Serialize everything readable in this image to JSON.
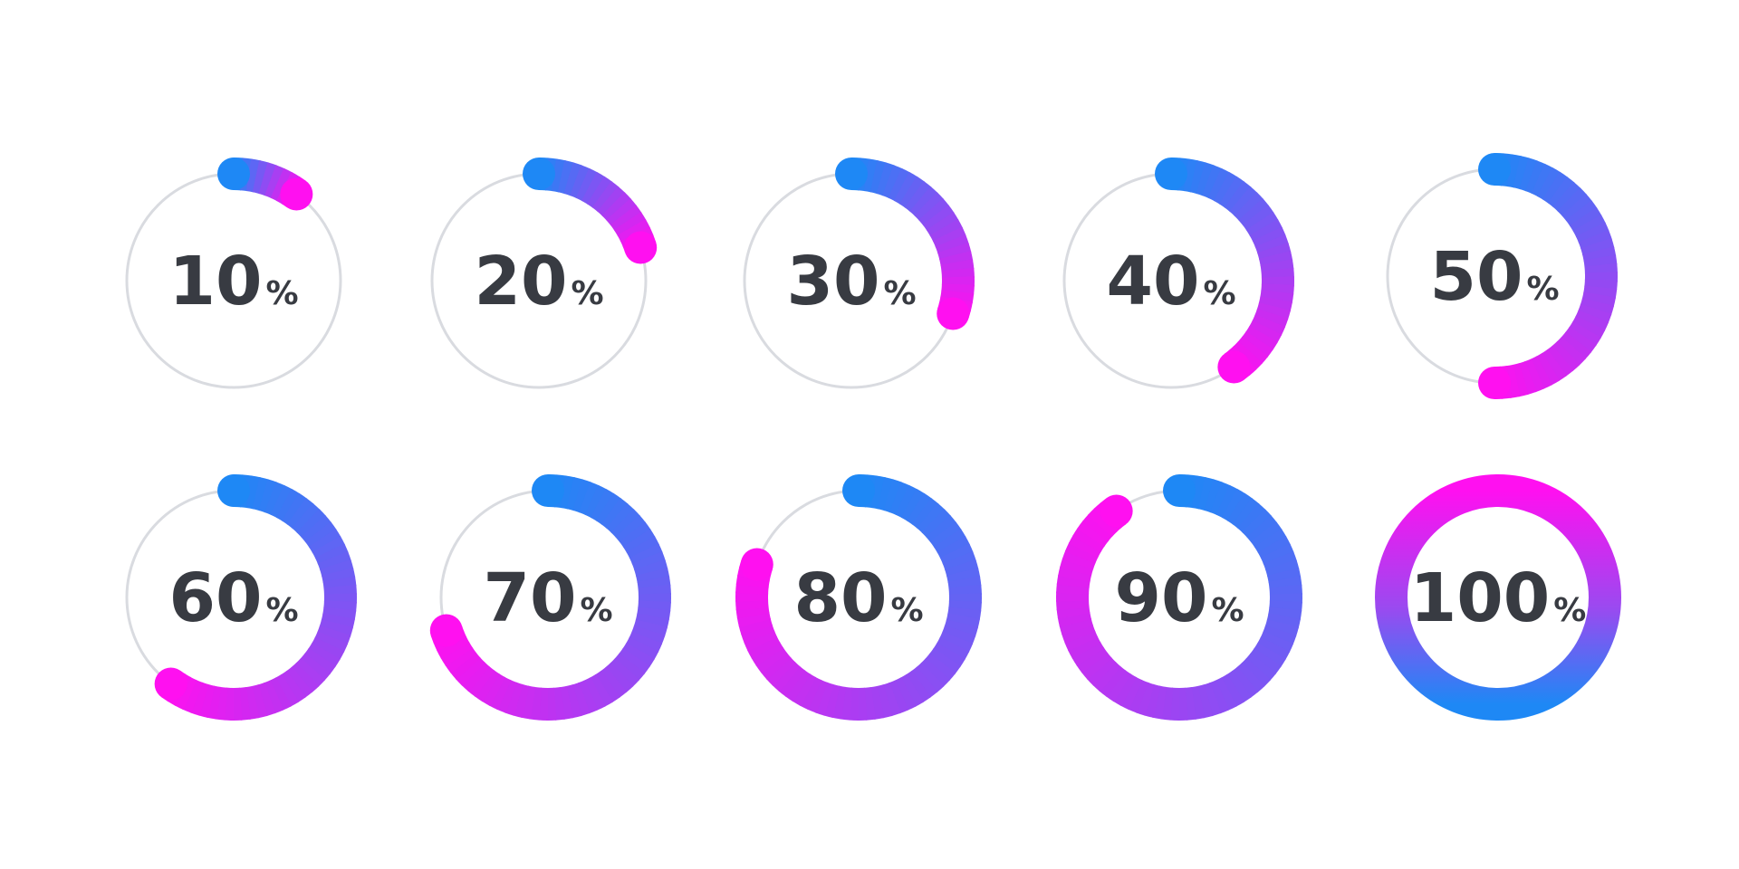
{
  "colors": {
    "background": "#ffffff",
    "track": "#d9dbe0",
    "text": "#383b42",
    "gradient_start": "#1e88f5",
    "gradient_end": "#ff10f0"
  },
  "indicators": [
    {
      "value": 10,
      "label_number": "10",
      "label_sign": "%"
    },
    {
      "value": 20,
      "label_number": "20",
      "label_sign": "%"
    },
    {
      "value": 30,
      "label_number": "30",
      "label_sign": "%"
    },
    {
      "value": 40,
      "label_number": "40",
      "label_sign": "%"
    },
    {
      "value": 50,
      "label_number": "50",
      "label_sign": "%"
    },
    {
      "value": 60,
      "label_number": "60",
      "label_sign": "%"
    },
    {
      "value": 70,
      "label_number": "70",
      "label_sign": "%"
    },
    {
      "value": 80,
      "label_number": "80",
      "label_sign": "%"
    },
    {
      "value": 90,
      "label_number": "90",
      "label_sign": "%"
    },
    {
      "value": 100,
      "label_number": "100",
      "label_sign": "%"
    }
  ]
}
